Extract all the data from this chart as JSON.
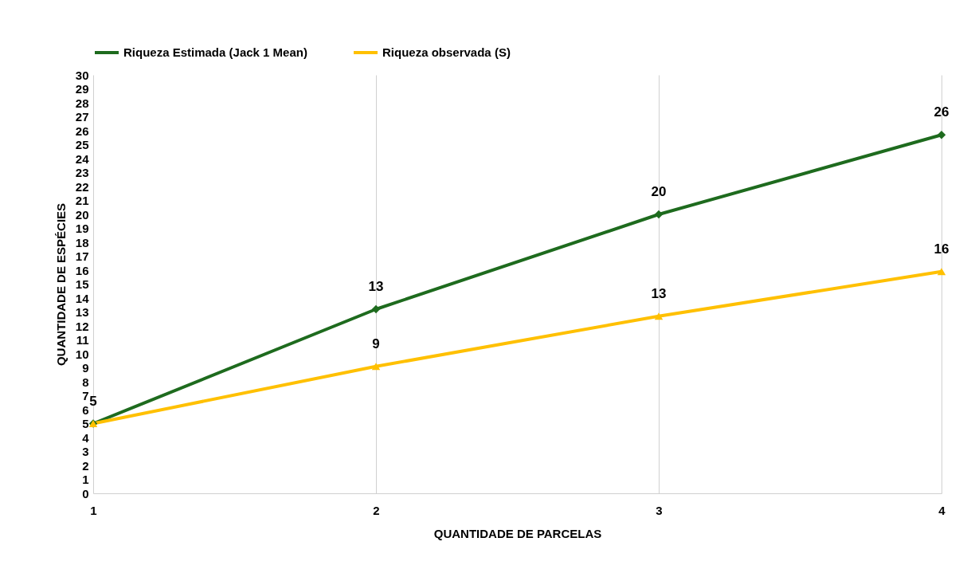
{
  "chart_data": {
    "type": "line",
    "xlabel": "QUANTIDADE DE PARCELAS",
    "ylabel": "QUANTIDADE DE ESPÉCIES",
    "x": [
      1,
      2,
      3,
      4
    ],
    "xlim": [
      1,
      4
    ],
    "xticks": [
      1,
      2,
      3,
      4
    ],
    "ylim": [
      0,
      30
    ],
    "yticks": [
      0,
      1,
      2,
      3,
      4,
      5,
      6,
      7,
      8,
      9,
      10,
      11,
      12,
      13,
      14,
      15,
      16,
      17,
      18,
      19,
      20,
      21,
      22,
      23,
      24,
      25,
      26,
      27,
      28,
      29,
      30
    ],
    "grid": "x",
    "legend": "top",
    "line_style": "solid",
    "series": [
      {
        "name": "Riqueza Estimada (Jack 1 Mean)",
        "color": "#1e6b1e",
        "marker": "diamond",
        "values": [
          5,
          13.2,
          20,
          25.7
        ],
        "value_labels": [
          "5",
          "13",
          "20",
          "26"
        ]
      },
      {
        "name": "Riqueza observada (S)",
        "color": "#ffc000",
        "marker": "triangle",
        "values": [
          5,
          9.1,
          12.7,
          15.9
        ],
        "value_labels": [
          null,
          "9",
          "13",
          "16"
        ]
      }
    ]
  }
}
